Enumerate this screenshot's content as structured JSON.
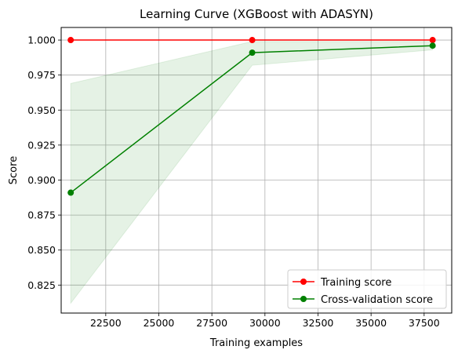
{
  "chart_data": {
    "type": "line",
    "title": "Learning Curve (XGBoost with ADASYN)",
    "xlabel": "Training examples",
    "ylabel": "Score",
    "xlim": [
      20400,
      38800
    ],
    "ylim": [
      0.805,
      1.009
    ],
    "grid": true,
    "legend_position": "lower-right",
    "x_ticks": [
      22500,
      25000,
      27500,
      30000,
      32500,
      35000,
      37500
    ],
    "x_tick_labels": [
      "22500",
      "25000",
      "27500",
      "30000",
      "32500",
      "35000",
      "37500"
    ],
    "y_ticks": [
      0.825,
      0.85,
      0.875,
      0.9,
      0.925,
      0.95,
      0.975,
      1.0
    ],
    "y_tick_labels": [
      "0.825",
      "0.850",
      "0.875",
      "0.900",
      "0.925",
      "0.950",
      "0.975",
      "1.000"
    ],
    "series": [
      {
        "name": "Training score",
        "color": "#ff0000",
        "x": [
          20850,
          29400,
          37900
        ],
        "values": [
          1.0,
          1.0,
          1.0
        ],
        "band_lower": [
          1.0,
          1.0,
          1.0
        ],
        "band_upper": [
          1.0,
          1.0,
          1.0
        ]
      },
      {
        "name": "Cross-validation score",
        "color": "#008000",
        "x": [
          20850,
          29400,
          37900
        ],
        "values": [
          0.891,
          0.991,
          0.996
        ],
        "band_lower": [
          0.812,
          0.982,
          0.993
        ],
        "band_upper": [
          0.969,
          0.999,
          0.999
        ]
      }
    ]
  }
}
